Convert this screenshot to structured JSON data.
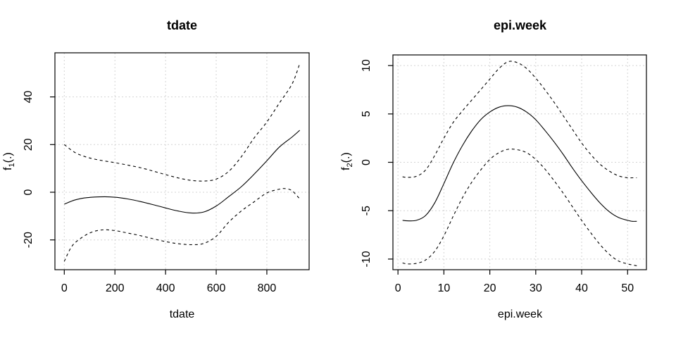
{
  "colors": {
    "line": "#000000",
    "grid": "#d3d3d3",
    "background": "#ffffff",
    "text": "#000000"
  },
  "chart_data": [
    {
      "id": "tdate",
      "type": "line",
      "title": "tdate",
      "xlabel": "tdate",
      "ylabel": "f1(.)",
      "ylabel_base": "f",
      "ylabel_sub": "1",
      "ylabel_rest": "(.)",
      "xlim": [
        -37,
        967
      ],
      "ylim": [
        -32.5,
        58.5
      ],
      "xticks": [
        0,
        200,
        400,
        600,
        800
      ],
      "yticks": [
        -20,
        0,
        20,
        40
      ],
      "grid": true,
      "legend": null,
      "series": [
        {
          "name": "smooth-estimate",
          "style": "solid",
          "x": [
            0,
            40,
            80,
            120,
            160,
            200,
            250,
            300,
            350,
            400,
            450,
            500,
            550,
            600,
            650,
            700,
            750,
            800,
            850,
            900,
            930
          ],
          "y": [
            -5.0,
            -3.3,
            -2.4,
            -2.0,
            -1.9,
            -2.1,
            -2.8,
            -3.9,
            -5.2,
            -6.6,
            -7.9,
            -8.7,
            -8.3,
            -5.8,
            -1.8,
            2.4,
            7.6,
            13.2,
            19.0,
            23.2,
            26.0
          ]
        },
        {
          "name": "upper-confidence-band",
          "style": "dashed",
          "x": [
            0,
            40,
            80,
            120,
            160,
            200,
            250,
            300,
            350,
            400,
            450,
            500,
            550,
            600,
            650,
            700,
            750,
            800,
            850,
            900,
            930
          ],
          "y": [
            20.0,
            16.8,
            15.0,
            13.9,
            13.1,
            12.4,
            11.4,
            10.3,
            8.9,
            7.4,
            6.0,
            5.0,
            4.7,
            5.5,
            8.8,
            15.0,
            22.8,
            29.5,
            37.5,
            45.5,
            54.0
          ]
        },
        {
          "name": "lower-confidence-band",
          "style": "dashed",
          "x": [
            0,
            25,
            50,
            100,
            150,
            200,
            250,
            300,
            350,
            400,
            450,
            500,
            550,
            600,
            650,
            700,
            750,
            800,
            850,
            875,
            900,
            930
          ],
          "y": [
            -29.0,
            -23.5,
            -20.5,
            -17.1,
            -15.8,
            -16.1,
            -17.1,
            -18.2,
            -19.5,
            -20.7,
            -21.6,
            -22.0,
            -21.5,
            -18.5,
            -12.5,
            -7.8,
            -4.0,
            -0.3,
            1.3,
            1.5,
            0.6,
            -2.8
          ]
        }
      ]
    },
    {
      "id": "epi-week",
      "type": "line",
      "title": "epi.week",
      "xlabel": "epi.week",
      "ylabel": "f2(.)",
      "ylabel_base": "f",
      "ylabel_sub": "2",
      "ylabel_rest": "(.)",
      "xlim": [
        -1.1,
        54.1
      ],
      "ylim": [
        -11.1,
        11.1
      ],
      "xticks": [
        0,
        10,
        20,
        30,
        40,
        50
      ],
      "yticks": [
        -10,
        -5,
        0,
        5,
        10
      ],
      "grid": true,
      "legend": null,
      "series": [
        {
          "name": "smooth-estimate",
          "style": "solid",
          "x": [
            1,
            2,
            4,
            6,
            8,
            10,
            12,
            14,
            16,
            18,
            20,
            22,
            24,
            26,
            28,
            30,
            32,
            34,
            36,
            38,
            40,
            42,
            44,
            46,
            48,
            50,
            51,
            52
          ],
          "y": [
            -6.0,
            -6.05,
            -6.0,
            -5.5,
            -4.2,
            -2.2,
            -0.1,
            1.7,
            3.2,
            4.4,
            5.2,
            5.7,
            5.85,
            5.7,
            5.2,
            4.4,
            3.3,
            2.1,
            0.8,
            -0.6,
            -1.9,
            -3.1,
            -4.2,
            -5.1,
            -5.7,
            -6.0,
            -6.1,
            -6.1
          ]
        },
        {
          "name": "upper-confidence-band",
          "style": "dashed",
          "x": [
            1,
            2,
            4,
            6,
            8,
            10,
            12,
            14,
            16,
            18,
            20,
            22,
            24,
            26,
            28,
            30,
            32,
            34,
            36,
            38,
            40,
            42,
            44,
            46,
            48,
            50,
            51,
            52
          ],
          "y": [
            -1.5,
            -1.55,
            -1.45,
            -0.8,
            0.7,
            2.5,
            4.1,
            5.3,
            6.4,
            7.5,
            8.6,
            9.7,
            10.4,
            10.3,
            9.7,
            8.7,
            7.5,
            6.2,
            4.8,
            3.4,
            2.0,
            0.8,
            -0.2,
            -0.9,
            -1.4,
            -1.6,
            -1.6,
            -1.6
          ]
        },
        {
          "name": "lower-confidence-band",
          "style": "dashed",
          "x": [
            1,
            2,
            4,
            6,
            8,
            10,
            12,
            14,
            16,
            18,
            20,
            22,
            24,
            26,
            28,
            30,
            32,
            34,
            36,
            38,
            40,
            42,
            44,
            46,
            48,
            50,
            51,
            52
          ],
          "y": [
            -10.4,
            -10.5,
            -10.45,
            -10.1,
            -9.2,
            -7.6,
            -5.6,
            -3.7,
            -2.1,
            -0.8,
            0.3,
            1.0,
            1.35,
            1.3,
            1.0,
            0.3,
            -0.7,
            -1.9,
            -3.2,
            -4.6,
            -6.0,
            -7.3,
            -8.5,
            -9.5,
            -10.2,
            -10.5,
            -10.6,
            -10.7
          ]
        }
      ]
    }
  ]
}
